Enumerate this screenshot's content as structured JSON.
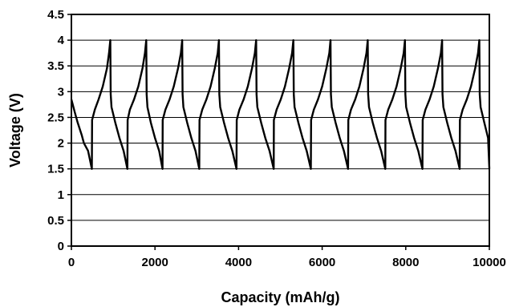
{
  "chart_data": {
    "type": "line",
    "title": "",
    "xlabel": "Capacity (mAh/g)",
    "ylabel": "Voltage (V)",
    "xlim": [
      0,
      10000
    ],
    "ylim": [
      0,
      4.5
    ],
    "x_ticks": [
      0,
      2000,
      4000,
      6000,
      8000,
      10000
    ],
    "y_ticks": [
      0,
      0.5,
      1,
      1.5,
      2,
      2.5,
      3,
      3.5,
      4,
      4.5
    ],
    "x_tick_labels": [
      "0",
      "2000",
      "4000",
      "6000",
      "8000",
      "10000"
    ],
    "y_tick_labels": [
      "0",
      "0.5",
      "1",
      "1.5",
      "2",
      "2.5",
      "3",
      "3.5",
      "4",
      "4.5"
    ],
    "grid": {
      "horizontal": true,
      "vertical": false
    },
    "legend": "none",
    "line_color": "#000000",
    "series": [
      {
        "name": "",
        "x": [
          0,
          80,
          150,
          250,
          300,
          400,
          490,
          495,
          560,
          650,
          750,
          850,
          900,
          930,
          940,
          960,
          1050,
          1150,
          1250,
          1340,
          1345,
          1400,
          1500,
          1600,
          1700,
          1760,
          1790,
          1800,
          1820,
          1900,
          2000,
          2100,
          2180,
          2185,
          2250,
          2350,
          2450,
          2550,
          2620,
          2650,
          2660,
          2680,
          2770,
          2870,
          2970,
          3060,
          3065,
          3130,
          3230,
          3330,
          3430,
          3500,
          3530,
          3540,
          3560,
          3650,
          3750,
          3850,
          3950,
          3955,
          4020,
          4120,
          4220,
          4320,
          4390,
          4420,
          4430,
          4450,
          4540,
          4640,
          4740,
          4840,
          4845,
          4910,
          5010,
          5110,
          5210,
          5280,
          5310,
          5320,
          5340,
          5430,
          5530,
          5630,
          5730,
          5735,
          5800,
          5900,
          6000,
          6100,
          6170,
          6200,
          6210,
          6230,
          6320,
          6420,
          6520,
          6620,
          6625,
          6690,
          6790,
          6890,
          6990,
          7060,
          7090,
          7100,
          7120,
          7210,
          7310,
          7410,
          7510,
          7515,
          7580,
          7680,
          7780,
          7880,
          7950,
          7980,
          7990,
          8010,
          8100,
          8200,
          8300,
          8400,
          8405,
          8470,
          8570,
          8670,
          8770,
          8840,
          8870,
          8880,
          8900,
          8990,
          9090,
          9190,
          9290,
          9295,
          9360,
          9460,
          9560,
          9660,
          9730,
          9760,
          9770,
          9790,
          9880,
          9970,
          10000
        ],
        "y": [
          2.85,
          2.6,
          2.4,
          2.15,
          2.0,
          1.85,
          1.5,
          2.45,
          2.65,
          2.85,
          3.1,
          3.45,
          3.75,
          4.0,
          2.95,
          2.7,
          2.4,
          2.1,
          1.85,
          1.5,
          2.45,
          2.65,
          2.85,
          3.1,
          3.45,
          3.75,
          4.0,
          2.95,
          2.7,
          2.4,
          2.1,
          1.85,
          1.5,
          2.45,
          2.65,
          2.85,
          3.1,
          3.45,
          3.75,
          4.0,
          2.95,
          2.7,
          2.4,
          2.1,
          1.85,
          1.5,
          2.45,
          2.65,
          2.85,
          3.1,
          3.45,
          3.75,
          4.0,
          2.95,
          2.7,
          2.4,
          2.1,
          1.85,
          1.5,
          2.45,
          2.65,
          2.85,
          3.1,
          3.45,
          3.75,
          4.0,
          2.95,
          2.7,
          2.4,
          2.1,
          1.85,
          1.5,
          2.45,
          2.65,
          2.85,
          3.1,
          3.45,
          3.75,
          4.0,
          2.95,
          2.7,
          2.4,
          2.1,
          1.85,
          1.5,
          2.45,
          2.65,
          2.85,
          3.1,
          3.45,
          3.75,
          4.0,
          2.95,
          2.7,
          2.4,
          2.1,
          1.85,
          1.5,
          2.45,
          2.65,
          2.85,
          3.1,
          3.45,
          3.75,
          4.0,
          2.95,
          2.7,
          2.4,
          2.1,
          1.85,
          1.5,
          2.45,
          2.65,
          2.85,
          3.1,
          3.45,
          3.75,
          4.0,
          2.95,
          2.7,
          2.4,
          2.1,
          1.85,
          1.5,
          2.45,
          2.65,
          2.85,
          3.1,
          3.45,
          3.75,
          4.0,
          2.95,
          2.7,
          2.4,
          2.1,
          1.85,
          1.5,
          2.45,
          2.65,
          2.85,
          3.1,
          3.45,
          3.75,
          4.0,
          2.95,
          2.7,
          2.4,
          2.1,
          1.5
        ]
      }
    ]
  }
}
